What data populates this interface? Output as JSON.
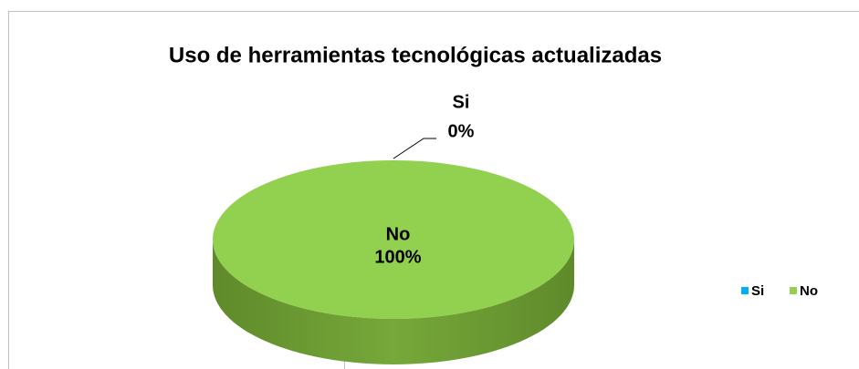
{
  "chart_data": {
    "type": "pie",
    "title": "Uso de herramientas tecnológicas actualizadas",
    "categories": [
      "Si",
      "No"
    ],
    "values": [
      0,
      100
    ],
    "value_labels": [
      "0%",
      "100%"
    ],
    "colors": [
      "#00b0f0",
      "#92d050"
    ],
    "legend": "right"
  }
}
